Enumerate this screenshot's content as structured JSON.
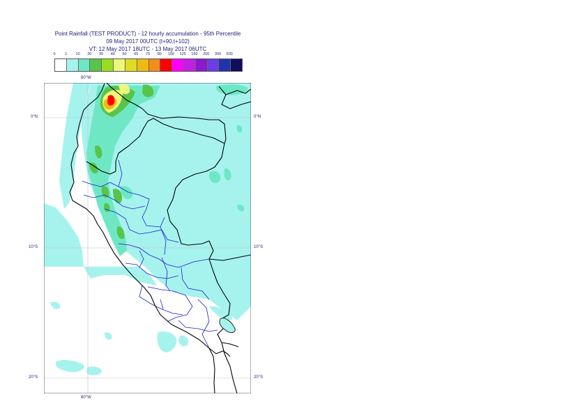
{
  "title": {
    "line1": "Point Rainfall (TEST PRODUCT) - 12 hourly accumulation - 95th Percentile",
    "line2": "09 May 2017 00UTC (t+90,t+102)",
    "line3": "VT: 12 May 2017 18UTC - 13 May 2017 06UTC"
  },
  "legend": {
    "ticks": [
      "0",
      "1",
      "10",
      "20",
      "30",
      "40",
      "50",
      "60",
      "70",
      "80",
      "100",
      "125",
      "150",
      "200",
      "300",
      "500"
    ],
    "colors": [
      "#ffffff",
      "#a6f3ee",
      "#6ee8c4",
      "#59c44a",
      "#99dd22",
      "#eef77a",
      "#dddd22",
      "#eebb11",
      "#f58c1c",
      "#ff0000",
      "#ff00ff",
      "#c41ee6",
      "#8a1acc",
      "#6a3de8",
      "#2233aa",
      "#0f0f5e"
    ]
  },
  "axes": {
    "lon_top": "80°W",
    "lon_bottom": "80°W",
    "lat_left": [
      "0°N",
      "10°S",
      "20°S"
    ],
    "lat_right": [
      "0°N",
      "10°S",
      "20°S"
    ]
  },
  "colors": {
    "sea_light_rain": "#a6f3ee",
    "moderate_rain": "#6ee8c4",
    "heavy_rain": "#59c44a",
    "coastline": "#000000",
    "admin_boundary": "#1c1ccc",
    "gridline": "#bfbfbf"
  }
}
